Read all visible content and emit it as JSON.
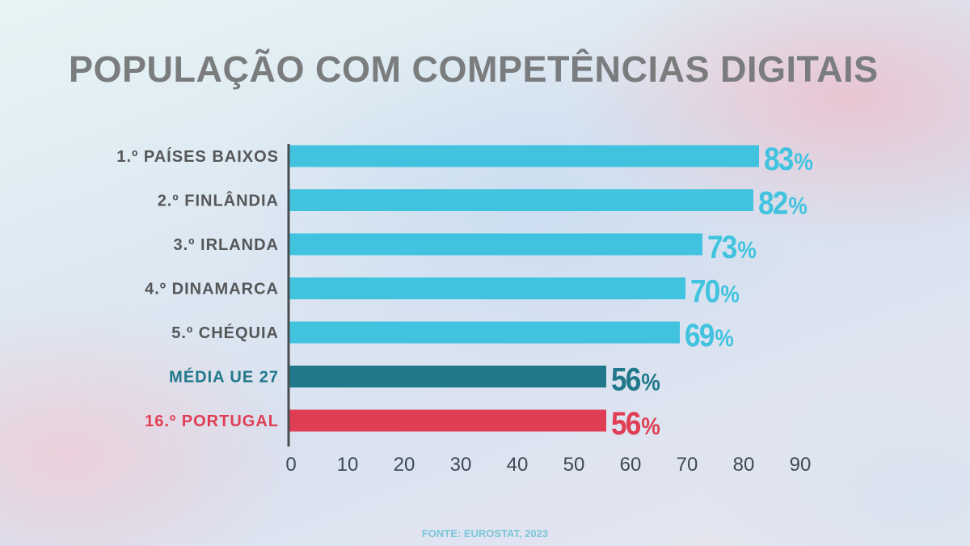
{
  "title": "POPULAÇÃO COM COMPETÊNCIAS DIGITAIS",
  "source": "FONTE: EUROSTAT, 2023",
  "chart_data": {
    "type": "bar",
    "orientation": "horizontal",
    "title": "POPULAÇÃO COM COMPETÊNCIAS DIGITAIS",
    "categories": [
      "1.º PAÍSES BAIXOS",
      "2.º FINLÂNDIA",
      "3.º IRLANDA",
      "4.º DINAMARCA",
      "5.º CHÉQUIA",
      "MÉDIA UE 27",
      "16.º PORTUGAL"
    ],
    "values": [
      83,
      82,
      73,
      70,
      69,
      56,
      56
    ],
    "value_labels": [
      "83%",
      "82%",
      "73%",
      "70%",
      "69%",
      "56%",
      "56%"
    ],
    "colors": [
      "#41c3df",
      "#41c3df",
      "#41c3df",
      "#41c3df",
      "#41c3df",
      "#20788a",
      "#e03e55"
    ],
    "label_colors": [
      "#555759",
      "#555759",
      "#555759",
      "#555759",
      "#555759",
      "#20788a",
      "#e03e55"
    ],
    "xlim": [
      0,
      90
    ],
    "xticks": [
      "0",
      "10",
      "20",
      "30",
      "40",
      "50",
      "60",
      "70",
      "80",
      "90"
    ],
    "grid": false,
    "xlabel": "",
    "ylabel": ""
  }
}
